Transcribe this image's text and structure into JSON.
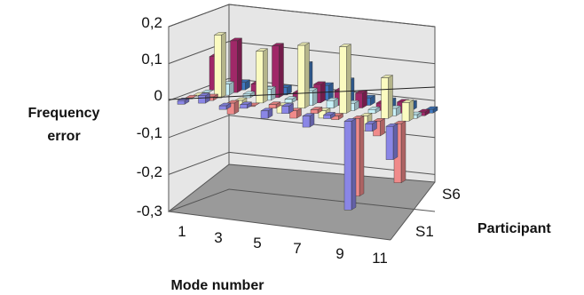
{
  "chart_data": {
    "type": "bar",
    "subtype": "3d-bar",
    "title": "",
    "ylabel_line1": "Frequency",
    "ylabel_line2": "error",
    "xlabel": "Mode number",
    "zlabel": "Participant",
    "ylim": [
      -0.3,
      0.2
    ],
    "yticks": [
      "0,2",
      "0,1",
      "0",
      "-0,1",
      "-0,2",
      "-0,3"
    ],
    "xticks": [
      "1",
      "3",
      "5",
      "7",
      "9",
      "11"
    ],
    "zticks": [
      "S1",
      "S6"
    ],
    "categories": [
      "1",
      "2",
      "3",
      "4",
      "5",
      "6",
      "7",
      "8",
      "9",
      "10",
      "11"
    ],
    "grid": true,
    "legend": "none",
    "colors": {
      "wall": "#e6e6e6",
      "floor": "#9a9a9a",
      "purple": "#8a86e6",
      "salmon": "#f08a8a",
      "cream": "#fbfbc0",
      "light-cyan": "#c8f0f8",
      "maroon": "#a02868",
      "blue": "#3f78c0"
    },
    "series": [
      {
        "color": "purple",
        "values": [
          -0.01,
          0.02,
          -0.01,
          0.01,
          -0.02,
          0.02,
          -0.03,
          0.01,
          -0.24,
          -0.02,
          -0.09
        ]
      },
      {
        "color": "salmon",
        "values": [
          0.0,
          0.01,
          -0.03,
          0.0,
          0.01,
          -0.02,
          0.01,
          -0.01,
          -0.21,
          -0.04,
          -0.16
        ]
      },
      {
        "color": "cream",
        "values": [
          0.0,
          0.17,
          -0.02,
          0.14,
          -0.02,
          0.17,
          -0.02,
          0.18,
          -0.04,
          0.11,
          0.05
        ]
      },
      {
        "color": "light-cyan",
        "values": [
          0.0,
          0.03,
          0.01,
          0.03,
          0.01,
          0.04,
          0.02,
          0.02,
          0.01,
          0.02,
          0.01
        ]
      },
      {
        "color": "maroon",
        "values": [
          0.09,
          0.14,
          0.03,
          0.14,
          0.02,
          0.05,
          0.04,
          0.04,
          0.02,
          0.03,
          0.01
        ]
      },
      {
        "color": "blue",
        "values": [
          0.0,
          0.02,
          0.01,
          0.02,
          0.09,
          0.04,
          0.06,
          0.02,
          0.02,
          0.02,
          0.01
        ]
      }
    ]
  }
}
